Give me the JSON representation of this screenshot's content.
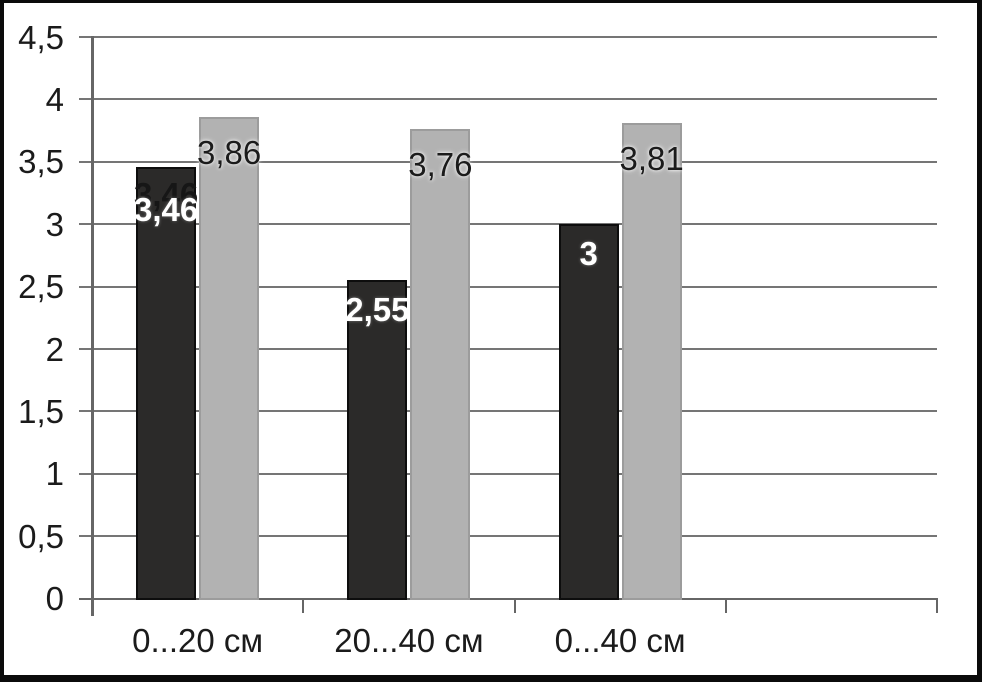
{
  "chart_data": {
    "type": "bar",
    "title": "",
    "xlabel": "",
    "ylabel": "",
    "categories": [
      "0...20 см",
      "20...40 см",
      "0...40 см"
    ],
    "series": [
      {
        "name": "series-1-dark",
        "color": "#2b2a29",
        "border_color": "#0d0d0d",
        "label_color": "#ffffff",
        "label_bold": true,
        "values": [
          3.46,
          2.55,
          3
        ],
        "labels": [
          "3,46",
          "2,55",
          "3"
        ]
      },
      {
        "name": "series-2-light",
        "color": "#b2b2b2",
        "border_color": "#9c9c9c",
        "label_color": "#1b1b1b",
        "label_bold": false,
        "values": [
          3.86,
          3.76,
          3.81
        ],
        "labels": [
          "3,86",
          "3,76",
          "3,81"
        ]
      }
    ],
    "y_axis": {
      "min": 0,
      "max": 4.5,
      "step": 0.5,
      "tick_labels": [
        "4,5",
        "4",
        "3,5",
        "3",
        "2,5",
        "2",
        "1,5",
        "1",
        "0,5",
        "0"
      ],
      "tick_values": [
        4.5,
        4,
        3.5,
        3,
        2.5,
        2,
        1.5,
        1,
        0.5,
        0
      ]
    },
    "grid": true,
    "legend": false,
    "ghost_label": {
      "series_index": 0,
      "category_index": 0,
      "text": "3,46"
    },
    "colors": {
      "gridline": "#757575",
      "axis": "#666666",
      "tick_text": "#1b1b1b",
      "frame": "#0b0b0b",
      "background": "#ffffff"
    }
  }
}
